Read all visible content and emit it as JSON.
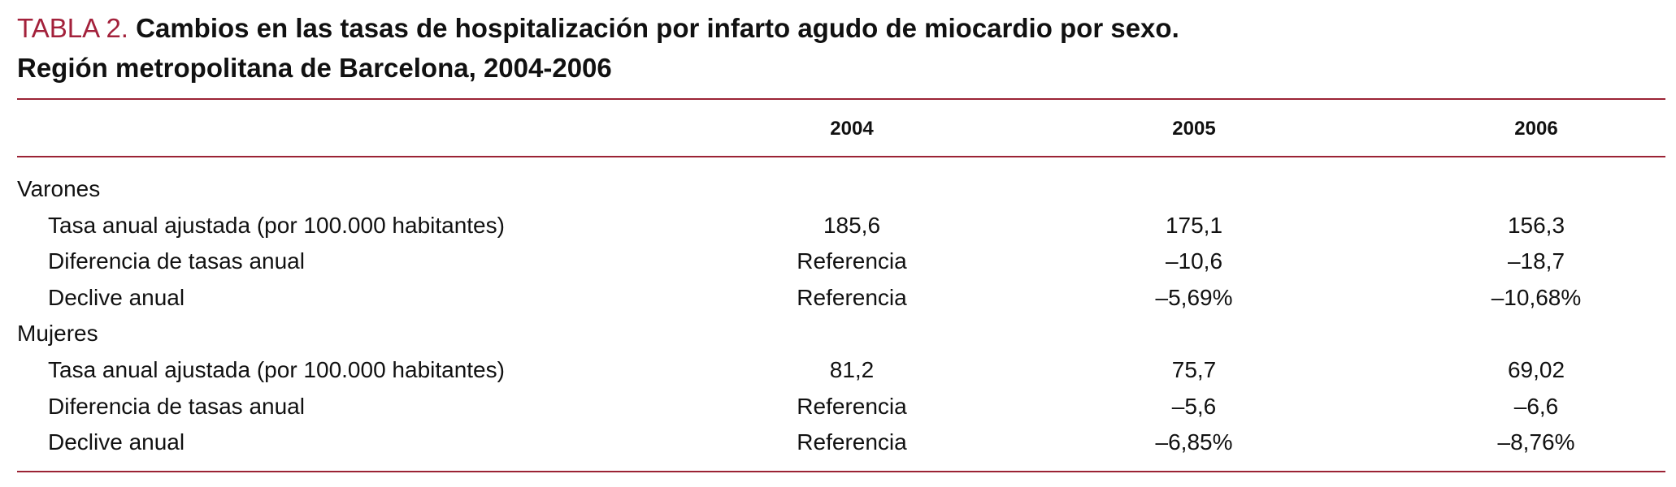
{
  "title": {
    "label": "TABLA 2.",
    "text": "Cambios en las tasas de hospitalización por infarto agudo de miocardio por sexo.",
    "subtitle": "Región metropolitana de Barcelona, 2004-2006"
  },
  "table": {
    "columns": [
      "2004",
      "2005",
      "2006"
    ],
    "groups": [
      {
        "label": "Varones",
        "rows": [
          {
            "label": "Tasa anual ajustada (por 100.000 habitantes)",
            "values": [
              "185,6",
              "175,1",
              "156,3"
            ]
          },
          {
            "label": "Diferencia de tasas anual",
            "values": [
              "Referencia",
              "–10,6",
              "–18,7"
            ]
          },
          {
            "label": "Declive anual",
            "values": [
              "Referencia",
              "–5,69%",
              "–10,68%"
            ]
          }
        ]
      },
      {
        "label": "Mujeres",
        "rows": [
          {
            "label": "Tasa anual ajustada (por 100.000 habitantes)",
            "values": [
              "81,2",
              "75,7",
              "69,02"
            ]
          },
          {
            "label": "Diferencia de tasas anual",
            "values": [
              "Referencia",
              "–5,6",
              "–6,6"
            ]
          },
          {
            "label": "Declive anual",
            "values": [
              "Referencia",
              "–6,85%",
              "–8,76%"
            ]
          }
        ]
      }
    ]
  }
}
